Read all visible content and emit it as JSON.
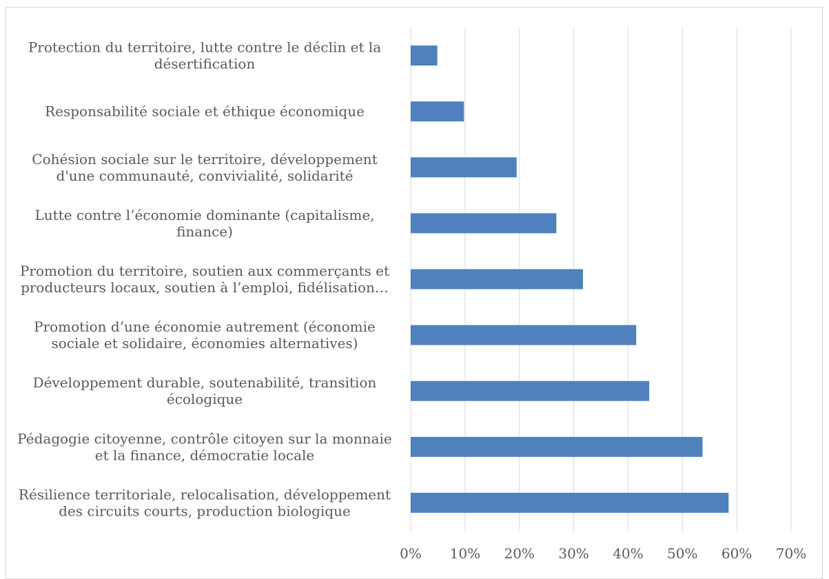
{
  "chart_data": {
    "type": "bar",
    "orientation": "horizontal",
    "categories": [
      [
        "Protection du territoire, lutte contre le déclin et la",
        "désertification"
      ],
      [
        "Responsabilité sociale et éthique économique"
      ],
      [
        "Cohésion sociale sur le territoire, développement",
        "d'une communauté, convivialité, solidarité"
      ],
      [
        "Lutte contre l’économie dominante (capitalisme,",
        "finance)"
      ],
      [
        "Promotion du territoire, soutien aux commerçants et",
        "producteurs locaux, soutien à l’emploi, fidélisation…"
      ],
      [
        "Promotion d’une économie autrement (économie",
        "sociale et solidaire, économies alternatives)"
      ],
      [
        "Développement durable, soutenabilité, transition",
        "écologique"
      ],
      [
        "Pédagogie citoyenne, contrôle citoyen sur la monnaie",
        "et la finance, démocratie locale"
      ],
      [
        "Résilience territoriale, relocalisation, développement",
        "des circuits courts, production biologique"
      ]
    ],
    "values": [
      0.049,
      0.098,
      0.195,
      0.268,
      0.317,
      0.415,
      0.439,
      0.537,
      0.585
    ],
    "xlim": [
      0,
      0.7
    ],
    "x_ticks": [
      0,
      0.1,
      0.2,
      0.3,
      0.4,
      0.5,
      0.6,
      0.7
    ],
    "x_tick_labels": [
      "0%",
      "10%",
      "20%",
      "30%",
      "40%",
      "50%",
      "60%",
      "70%"
    ],
    "grid": "vertical",
    "legend": "none",
    "bar_color": "#4f81bd",
    "grid_color": "#d9d9d9",
    "title": "",
    "xlabel": "",
    "ylabel": ""
  }
}
